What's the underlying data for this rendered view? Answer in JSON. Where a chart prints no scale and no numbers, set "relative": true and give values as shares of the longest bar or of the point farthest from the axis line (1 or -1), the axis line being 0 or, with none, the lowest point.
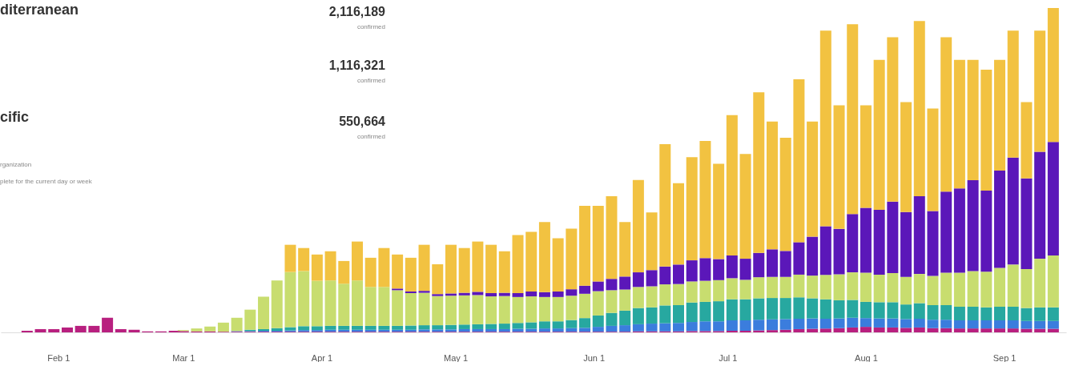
{
  "chart_data": {
    "type": "bar",
    "stacked": true,
    "relative": true,
    "grid": false,
    "legend": false,
    "x": [
      "--01-25",
      "--01-28",
      "--01-31",
      "--02-03",
      "--02-06",
      "--02-09",
      "--02-12",
      "--02-15",
      "--02-18",
      "--02-21",
      "--02-24",
      "--02-27",
      "--03-01",
      "--03-04",
      "--03-07",
      "--03-10",
      "--03-13",
      "--03-16",
      "--03-19",
      "--03-22",
      "--03-25",
      "--03-28",
      "--03-31",
      "--04-03",
      "--04-06",
      "--04-09",
      "--04-12",
      "--04-15",
      "--04-18",
      "--04-21",
      "--04-24",
      "--04-27",
      "--04-30",
      "--05-03",
      "--05-06",
      "--05-09",
      "--05-12",
      "--05-15",
      "--05-18",
      "--05-21",
      "--05-24",
      "--05-27",
      "--05-30",
      "--06-02",
      "--06-05",
      "--06-08",
      "--06-11",
      "--06-14",
      "--06-17",
      "--06-20",
      "--06-23",
      "--06-26",
      "--06-29",
      "--07-02",
      "--07-05",
      "--07-08",
      "--07-11",
      "--07-14",
      "--07-17",
      "--07-20",
      "--07-23",
      "--07-26",
      "--07-29",
      "--08-01",
      "--08-04",
      "--08-07",
      "--08-10",
      "--08-13",
      "--08-16",
      "--08-19",
      "--08-22",
      "--08-25",
      "--08-28",
      "--08-31",
      "--09-03",
      "--09-06",
      "--09-09",
      "--09-12"
    ],
    "xlim": [
      "--01-20",
      "--09-14"
    ],
    "xticks": [
      {
        "value": "--02-01",
        "label": "Feb 1"
      },
      {
        "value": "--03-01",
        "label": "Mar 1"
      },
      {
        "value": "--04-01",
        "label": "Apr 1"
      },
      {
        "value": "--05-01",
        "label": "May 1"
      },
      {
        "value": "--06-01",
        "label": "Jun 1"
      },
      {
        "value": "--07-01",
        "label": "Jul 1"
      },
      {
        "value": "--08-01",
        "label": "Aug 1"
      },
      {
        "value": "--09-01",
        "label": "Sep 1"
      }
    ],
    "series": [
      {
        "color": "#b8207f",
        "values": [
          0.005,
          0.01,
          0.01,
          0.015,
          0.02,
          0.02,
          0.045,
          0.01,
          0.008,
          0.003,
          0.003,
          0.005,
          0.004,
          0.003,
          0.003,
          0.002,
          0.002,
          0.002,
          0.002,
          0.002,
          0.002,
          0.002,
          0.002,
          0.002,
          0.002,
          0.002,
          0.002,
          0.002,
          0.002,
          0.002,
          0.002,
          0.002,
          0.002,
          0.002,
          0.002,
          0.002,
          0.002,
          0.002,
          0.002,
          0.002,
          0.002,
          0.002,
          0.002,
          0.002,
          0.002,
          0.002,
          0.003,
          0.003,
          0.003,
          0.003,
          0.004,
          0.004,
          0.004,
          0.005,
          0.005,
          0.006,
          0.007,
          0.008,
          0.01,
          0.011,
          0.012,
          0.013,
          0.015,
          0.017,
          0.015,
          0.015,
          0.014,
          0.015,
          0.013,
          0.013,
          0.012,
          0.012,
          0.012,
          0.012,
          0.012,
          0.011,
          0.011,
          0.011
        ]
      },
      {
        "color": "#3b7ddd",
        "values": [
          null,
          null,
          null,
          null,
          null,
          null,
          null,
          null,
          null,
          null,
          null,
          null,
          null,
          null,
          null,
          null,
          0.002,
          0.002,
          0.003,
          0.003,
          0.004,
          0.005,
          0.005,
          0.006,
          0.006,
          0.006,
          0.006,
          0.006,
          0.006,
          0.006,
          0.007,
          0.007,
          0.007,
          0.008,
          0.008,
          0.008,
          0.008,
          0.009,
          0.009,
          0.01,
          0.01,
          0.011,
          0.012,
          0.015,
          0.018,
          0.02,
          0.022,
          0.024,
          0.025,
          0.026,
          0.028,
          0.03,
          0.03,
          0.032,
          0.032,
          0.033,
          0.033,
          0.033,
          0.032,
          0.032,
          0.03,
          0.03,
          0.03,
          0.027,
          0.028,
          0.028,
          0.027,
          0.027,
          0.026,
          0.026,
          0.025,
          0.025,
          0.025,
          0.025,
          0.025,
          0.024,
          0.024,
          0.024
        ]
      },
      {
        "color": "#27a8a0",
        "values": [
          null,
          null,
          null,
          null,
          null,
          null,
          null,
          null,
          null,
          null,
          null,
          null,
          null,
          null,
          null,
          null,
          null,
          0.004,
          0.005,
          0.008,
          0.01,
          0.012,
          0.012,
          0.012,
          0.012,
          0.012,
          0.012,
          0.012,
          0.012,
          0.013,
          0.013,
          0.013,
          0.014,
          0.014,
          0.015,
          0.016,
          0.017,
          0.018,
          0.02,
          0.022,
          0.022,
          0.025,
          0.03,
          0.035,
          0.04,
          0.045,
          0.05,
          0.05,
          0.055,
          0.055,
          0.06,
          0.06,
          0.062,
          0.065,
          0.065,
          0.066,
          0.066,
          0.065,
          0.066,
          0.062,
          0.06,
          0.056,
          0.055,
          0.05,
          0.05,
          0.05,
          0.045,
          0.048,
          0.045,
          0.045,
          0.042,
          0.042,
          0.04,
          0.042,
          0.042,
          0.04,
          0.042,
          0.042
        ]
      },
      {
        "color": "#c8dd6f",
        "values": [
          null,
          null,
          null,
          null,
          null,
          null,
          null,
          null,
          null,
          null,
          null,
          null,
          0.003,
          0.009,
          0.015,
          0.028,
          0.041,
          0.062,
          0.1,
          0.147,
          0.17,
          0.17,
          0.14,
          0.14,
          0.13,
          0.14,
          0.12,
          0.12,
          0.11,
          0.1,
          0.1,
          0.09,
          0.09,
          0.09,
          0.09,
          0.085,
          0.085,
          0.08,
          0.08,
          0.075,
          0.075,
          0.075,
          0.075,
          0.075,
          0.07,
          0.065,
          0.065,
          0.065,
          0.065,
          0.065,
          0.065,
          0.065,
          0.065,
          0.065,
          0.06,
          0.065,
          0.065,
          0.065,
          0.07,
          0.07,
          0.075,
          0.08,
          0.085,
          0.09,
          0.085,
          0.09,
          0.085,
          0.09,
          0.09,
          0.1,
          0.105,
          0.11,
          0.11,
          0.12,
          0.13,
          0.12,
          0.15,
          0.16
        ]
      },
      {
        "color": "#5b17b9",
        "values": [
          null,
          null,
          null,
          null,
          null,
          null,
          null,
          null,
          null,
          null,
          null,
          null,
          null,
          null,
          null,
          null,
          null,
          null,
          null,
          null,
          null,
          null,
          null,
          null,
          null,
          null,
          null,
          null,
          0.005,
          0.005,
          0.006,
          0.006,
          0.007,
          0.008,
          0.01,
          0.01,
          0.01,
          0.012,
          0.015,
          0.015,
          0.017,
          0.02,
          0.025,
          0.03,
          0.035,
          0.04,
          0.045,
          0.05,
          0.055,
          0.06,
          0.065,
          0.07,
          0.065,
          0.07,
          0.065,
          0.075,
          0.085,
          0.08,
          0.1,
          0.12,
          0.15,
          0.14,
          0.18,
          0.2,
          0.2,
          0.22,
          0.2,
          0.24,
          0.2,
          0.25,
          0.26,
          0.28,
          0.25,
          0.3,
          0.33,
          0.28,
          0.33,
          0.35
        ]
      },
      {
        "color": "#f2c241",
        "values": [
          null,
          null,
          null,
          null,
          null,
          null,
          null,
          null,
          null,
          null,
          null,
          null,
          null,
          null,
          null,
          null,
          null,
          null,
          null,
          null,
          0.084,
          0.071,
          0.081,
          0.09,
          0.07,
          0.12,
          0.09,
          0.12,
          0.105,
          0.104,
          0.142,
          0.092,
          0.15,
          0.138,
          0.155,
          0.149,
          0.128,
          0.179,
          0.184,
          0.216,
          0.164,
          0.187,
          0.246,
          0.233,
          0.255,
          0.168,
          0.285,
          0.178,
          0.377,
          0.251,
          0.318,
          0.361,
          0.294,
          0.433,
          0.323,
          0.495,
          0.394,
          0.349,
          0.502,
          0.355,
          0.603,
          0.381,
          0.585,
          0.316,
          0.462,
          0.507,
          0.339,
          0.54,
          0.316,
          0.476,
          0.396,
          0.371,
          0.373,
          0.341,
          0.391,
          0.235,
          0.373,
          0.413
        ]
      }
    ],
    "annotations": [
      "diterranean",
      "2,116,189",
      "confirmed",
      "1,116,321",
      "confirmed",
      "cific",
      "550,664",
      "confirmed",
      "rganization",
      "plete for the current day or week"
    ]
  }
}
